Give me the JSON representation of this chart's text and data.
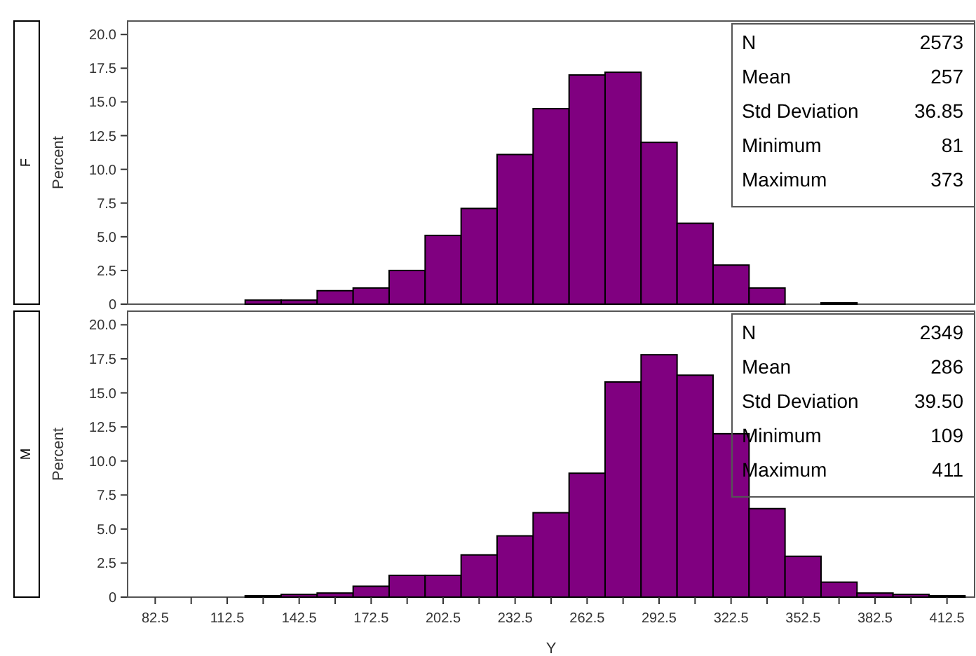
{
  "chart_data": [
    {
      "type": "histogram",
      "title": "F",
      "ylabel": "Percent",
      "color": "#800080",
      "bins": [
        75,
        90,
        105,
        120,
        135,
        150,
        165,
        180,
        195,
        210,
        225,
        240,
        255,
        270,
        285,
        300,
        315,
        330,
        345,
        360,
        375,
        390,
        405,
        420
      ],
      "values": [
        0,
        0,
        0,
        0.3,
        0.3,
        1.0,
        1.2,
        2.5,
        5.1,
        7.1,
        11.1,
        14.5,
        17.0,
        17.2,
        12.0,
        6.0,
        2.9,
        1.2,
        0,
        0.1,
        0,
        0,
        0
      ],
      "xlim": [
        71,
        424
      ],
      "ylim": [
        0,
        21
      ],
      "yticks": [
        0,
        {
          "value": 2.5,
          "label": "2.5"
        },
        {
          "value": 5,
          "label": "5.0"
        },
        {
          "value": 7.5,
          "label": "7.5"
        },
        {
          "value": 10,
          "label": "10.0"
        },
        {
          "value": 12.5,
          "label": "12.5"
        },
        {
          "value": 15,
          "label": "15.0"
        },
        {
          "value": 17.5,
          "label": "17.5"
        },
        {
          "value": 20,
          "label": "20.0"
        }
      ],
      "tick_labels": "y",
      "annotations": [
        "N",
        "2573",
        "Mean",
        "257",
        "Std Deviation",
        "36.85",
        "Minimum",
        "81",
        "Maximum",
        "373"
      ]
    },
    {
      "type": "histogram",
      "title": "M",
      "ylabel": "Percent",
      "xlabel": "Y",
      "color": "#800080",
      "bins": [
        75,
        90,
        105,
        120,
        135,
        150,
        165,
        180,
        195,
        210,
        225,
        240,
        255,
        270,
        285,
        300,
        315,
        330,
        345,
        360,
        375,
        390,
        405,
        420
      ],
      "values": [
        0,
        0,
        0,
        0.1,
        0.2,
        0.3,
        0.8,
        1.6,
        1.6,
        3.1,
        4.5,
        6.2,
        9.1,
        15.8,
        17.8,
        16.3,
        12.0,
        6.5,
        3.0,
        1.1,
        0.3,
        0.2,
        0.1
      ],
      "xlim": [
        71,
        424
      ],
      "xticks": [
        82.5,
        {
          "value": 97.5,
          "label": null
        },
        112.5,
        {
          "value": 127.5,
          "label": null
        },
        142.5,
        {
          "value": 157.5,
          "label": null
        },
        172.5,
        {
          "value": 187.5,
          "label": null
        },
        202.5,
        {
          "value": 217.5,
          "label": null
        },
        232.5,
        {
          "value": 247.5,
          "label": null
        },
        262.5,
        {
          "value": 277.5,
          "label": null
        },
        292.5,
        {
          "value": 307.5,
          "label": null
        },
        322.5,
        {
          "value": 337.5,
          "label": null
        },
        352.5,
        {
          "value": 367.5,
          "label": null
        },
        382.5,
        {
          "value": 397.5,
          "label": null
        },
        412.5
      ],
      "ylim": [
        0,
        21
      ],
      "yticks": [
        0,
        {
          "value": 2.5,
          "label": "2.5"
        },
        {
          "value": 5,
          "label": "5.0"
        },
        {
          "value": 7.5,
          "label": "7.5"
        },
        {
          "value": 10,
          "label": "10.0"
        },
        {
          "value": 12.5,
          "label": "12.5"
        },
        {
          "value": 15,
          "label": "15.0"
        },
        {
          "value": 17.5,
          "label": "17.5"
        },
        {
          "value": 20,
          "label": "20.0"
        }
      ],
      "annotations": [
        "N",
        "2349",
        "Mean",
        "286",
        "Std Deviation",
        "39.50",
        "Minimum",
        "109",
        "Maximum",
        "411"
      ]
    }
  ]
}
